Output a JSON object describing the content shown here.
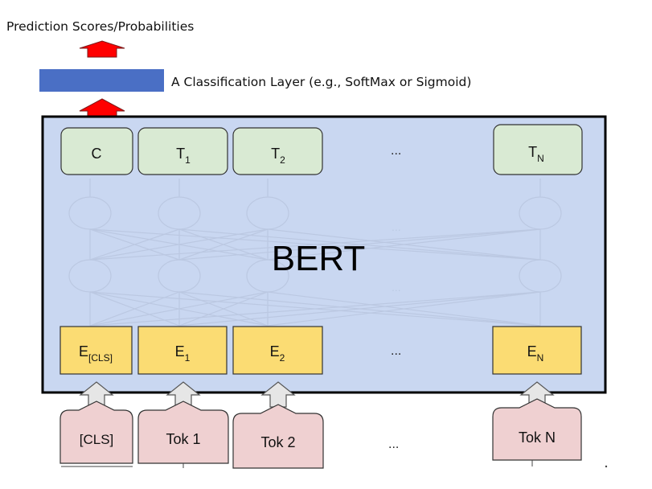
{
  "prediction_label": "Prediction Scores/Probabilities",
  "classification_label": "A Classification Layer (e.g., SoftMax or Sigmoid)",
  "bert_label": "BERT",
  "output_tokens": [
    {
      "main": "C",
      "sub": ""
    },
    {
      "main": "T",
      "sub": "1"
    },
    {
      "main": "T",
      "sub": "2"
    },
    {
      "main": "T",
      "sub": "N"
    }
  ],
  "embedding_tokens": [
    {
      "main": "E",
      "sub": "[CLS]"
    },
    {
      "main": "E",
      "sub": "1"
    },
    {
      "main": "E",
      "sub": "2"
    },
    {
      "main": "E",
      "sub": "N"
    }
  ],
  "input_tokens": [
    "[CLS]",
    "Tok 1",
    "Tok 2",
    "Tok N"
  ],
  "ellipsis": "...",
  "colors": {
    "bert_fill": "#c9d7f1",
    "output_fill": "#d9ead3",
    "embedding_fill": "#fbdc73",
    "input_fill": "#efd0d1",
    "classification_bar": "#4a6fc5",
    "arrow_red": "#ff0000",
    "arrow_gray": "#e6e6e6"
  }
}
